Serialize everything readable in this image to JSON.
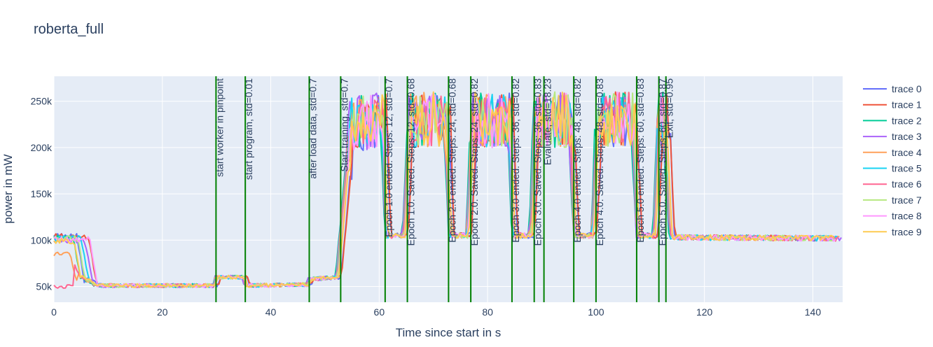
{
  "chart_data": {
    "type": "line",
    "title": "roberta_full",
    "xlabel": "Time since start in s",
    "ylabel": "power in mW",
    "xlim": [
      0,
      145.5
    ],
    "ylim": [
      33000,
      277000
    ],
    "x_ticks": [
      0,
      20,
      40,
      60,
      80,
      100,
      120,
      140
    ],
    "y_ticks": [
      50000,
      100000,
      150000,
      200000,
      250000
    ],
    "y_tick_labels": [
      "50k",
      "100k",
      "150k",
      "200k",
      "250k"
    ],
    "grid": true,
    "legend_position": "right",
    "series": [
      {
        "name": "trace 0",
        "color": "#636efa"
      },
      {
        "name": "trace 1",
        "color": "#EF553B"
      },
      {
        "name": "trace 2",
        "color": "#00cc96"
      },
      {
        "name": "trace 3",
        "color": "#ab63fa"
      },
      {
        "name": "trace 4",
        "color": "#FFA15A"
      },
      {
        "name": "trace 5",
        "color": "#19d3f3"
      },
      {
        "name": "trace 6",
        "color": "#FF6692"
      },
      {
        "name": "trace 7",
        "color": "#B6E880"
      },
      {
        "name": "trace 8",
        "color": "#FF97FF"
      },
      {
        "name": "trace 9",
        "color": "#FECB52"
      }
    ],
    "phase_profile": [
      [
        0,
        105000
      ],
      [
        3,
        84000
      ],
      [
        5,
        62000
      ],
      [
        8,
        51000
      ],
      [
        29.8,
        51000
      ],
      [
        30.2,
        60000
      ],
      [
        35.2,
        60000
      ],
      [
        35.6,
        51000
      ],
      [
        47,
        52000
      ],
      [
        47.4,
        58000
      ],
      [
        52.5,
        60000
      ],
      [
        55,
        225000
      ],
      [
        60.8,
        230000
      ],
      [
        61.6,
        105000
      ],
      [
        64.8,
        105000
      ],
      [
        65.8,
        230000
      ],
      [
        72.5,
        230000
      ],
      [
        73.3,
        105000
      ],
      [
        76.5,
        105000
      ],
      [
        77.5,
        230000
      ],
      [
        84.2,
        230000
      ],
      [
        85.0,
        105000
      ],
      [
        88.2,
        105000
      ],
      [
        89.0,
        230000
      ],
      [
        95.5,
        230000
      ],
      [
        96.3,
        105000
      ],
      [
        99.6,
        105000
      ],
      [
        100.6,
        230000
      ],
      [
        107.1,
        230000
      ],
      [
        107.9,
        105000
      ],
      [
        111.0,
        105000
      ],
      [
        111.8,
        230000
      ],
      [
        113,
        230000
      ],
      [
        114,
        103000
      ],
      [
        145.5,
        102000
      ]
    ],
    "vertical_markers": [
      {
        "x": 29.9,
        "color": "#008000",
        "label": "start worker in pinpoint"
      },
      {
        "x": 35.3,
        "color": "#008000",
        "label": "start program, std=0.01"
      },
      {
        "x": 47.1,
        "color": "#008000",
        "label": "after load data, std=0.7"
      },
      {
        "x": 52.9,
        "color": "#008000",
        "label": "Start training, std=0.7"
      },
      {
        "x": 61.1,
        "color": "#008000",
        "label": "Epoch 1.0 ended. Steps: 12, std=0.7"
      },
      {
        "x": 65.2,
        "color": "#008000",
        "label": "Epoch 1.0. Saved. Steps: 12, std=0.68"
      },
      {
        "x": 72.8,
        "color": "#008000",
        "label": "Epoch 2.0 ended. Steps: 24, std=0.68"
      },
      {
        "x": 76.9,
        "color": "#008000",
        "label": "Epoch 2.0. Saved. Steps: 24, std=0.82"
      },
      {
        "x": 84.5,
        "color": "#008000",
        "label": "Epoch 3.0 ended. Steps: 36, std=0.82"
      },
      {
        "x": 88.6,
        "color": "#008000",
        "label": "Epoch 3.0. Saved. Steps: 36, std=0.83"
      },
      {
        "x": 90.4,
        "color": "#008000",
        "label": "Evaluate, std=18.23"
      },
      {
        "x": 95.9,
        "color": "#008000",
        "label": "Epoch 4.0 ended. Steps: 48, std=0.82"
      },
      {
        "x": 100.0,
        "color": "#008000",
        "label": "Epoch 4.0. Saved. Steps: 48, std=0.83"
      },
      {
        "x": 107.5,
        "color": "#008000",
        "label": "Epoch 5.0 ended. Steps: 60, std=0.83"
      },
      {
        "x": 111.6,
        "color": "#008000",
        "label": "Epoch 5.0. Saved. Steps: 60, std=0.87"
      },
      {
        "x": 112.9,
        "color": "#008000",
        "label": "Exit, std=0.95"
      }
    ]
  }
}
